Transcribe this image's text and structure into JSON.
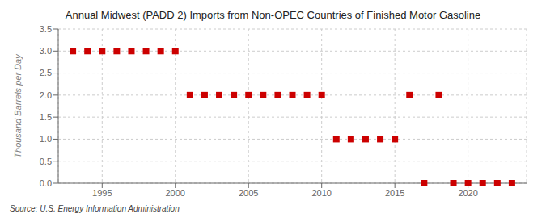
{
  "chart_data": {
    "type": "scatter",
    "title": "Annual Midwest (PADD 2) Imports from Non-OPEC Countries of Finished Motor Gasoline",
    "ylabel": "Thousand Barrels per Day",
    "annotation": "Source: U.S. Energy Information Administration",
    "x": [
      1993,
      1994,
      1995,
      1996,
      1997,
      1998,
      1999,
      2000,
      2001,
      2002,
      2003,
      2004,
      2005,
      2006,
      2007,
      2008,
      2009,
      2010,
      2011,
      2012,
      2013,
      2014,
      2015,
      2016,
      2017,
      2018,
      2019,
      2020,
      2021,
      2022,
      2023
    ],
    "values": [
      3.0,
      3.0,
      3.0,
      3.0,
      3.0,
      3.0,
      3.0,
      3.0,
      2.0,
      2.0,
      2.0,
      2.0,
      2.0,
      2.0,
      2.0,
      2.0,
      2.0,
      2.0,
      1.0,
      1.0,
      1.0,
      1.0,
      1.0,
      2.0,
      0.0,
      2.0,
      0.0,
      0.0,
      0.0,
      0.0,
      0.0
    ],
    "color": "#cc0000",
    "marker": "square",
    "grid": true,
    "xlim": [
      1992,
      2024
    ],
    "xticks": [
      1995,
      2000,
      2005,
      2010,
      2015,
      2020
    ],
    "ylim": [
      0,
      3.5
    ],
    "yticks": [
      {
        "value": 0,
        "label": "0.0"
      },
      0.5,
      {
        "value": 1,
        "label": "1.0"
      },
      1.5,
      {
        "value": 2,
        "label": "2.0"
      },
      2.5,
      {
        "value": 3,
        "label": "3.0"
      },
      3.5
    ]
  }
}
